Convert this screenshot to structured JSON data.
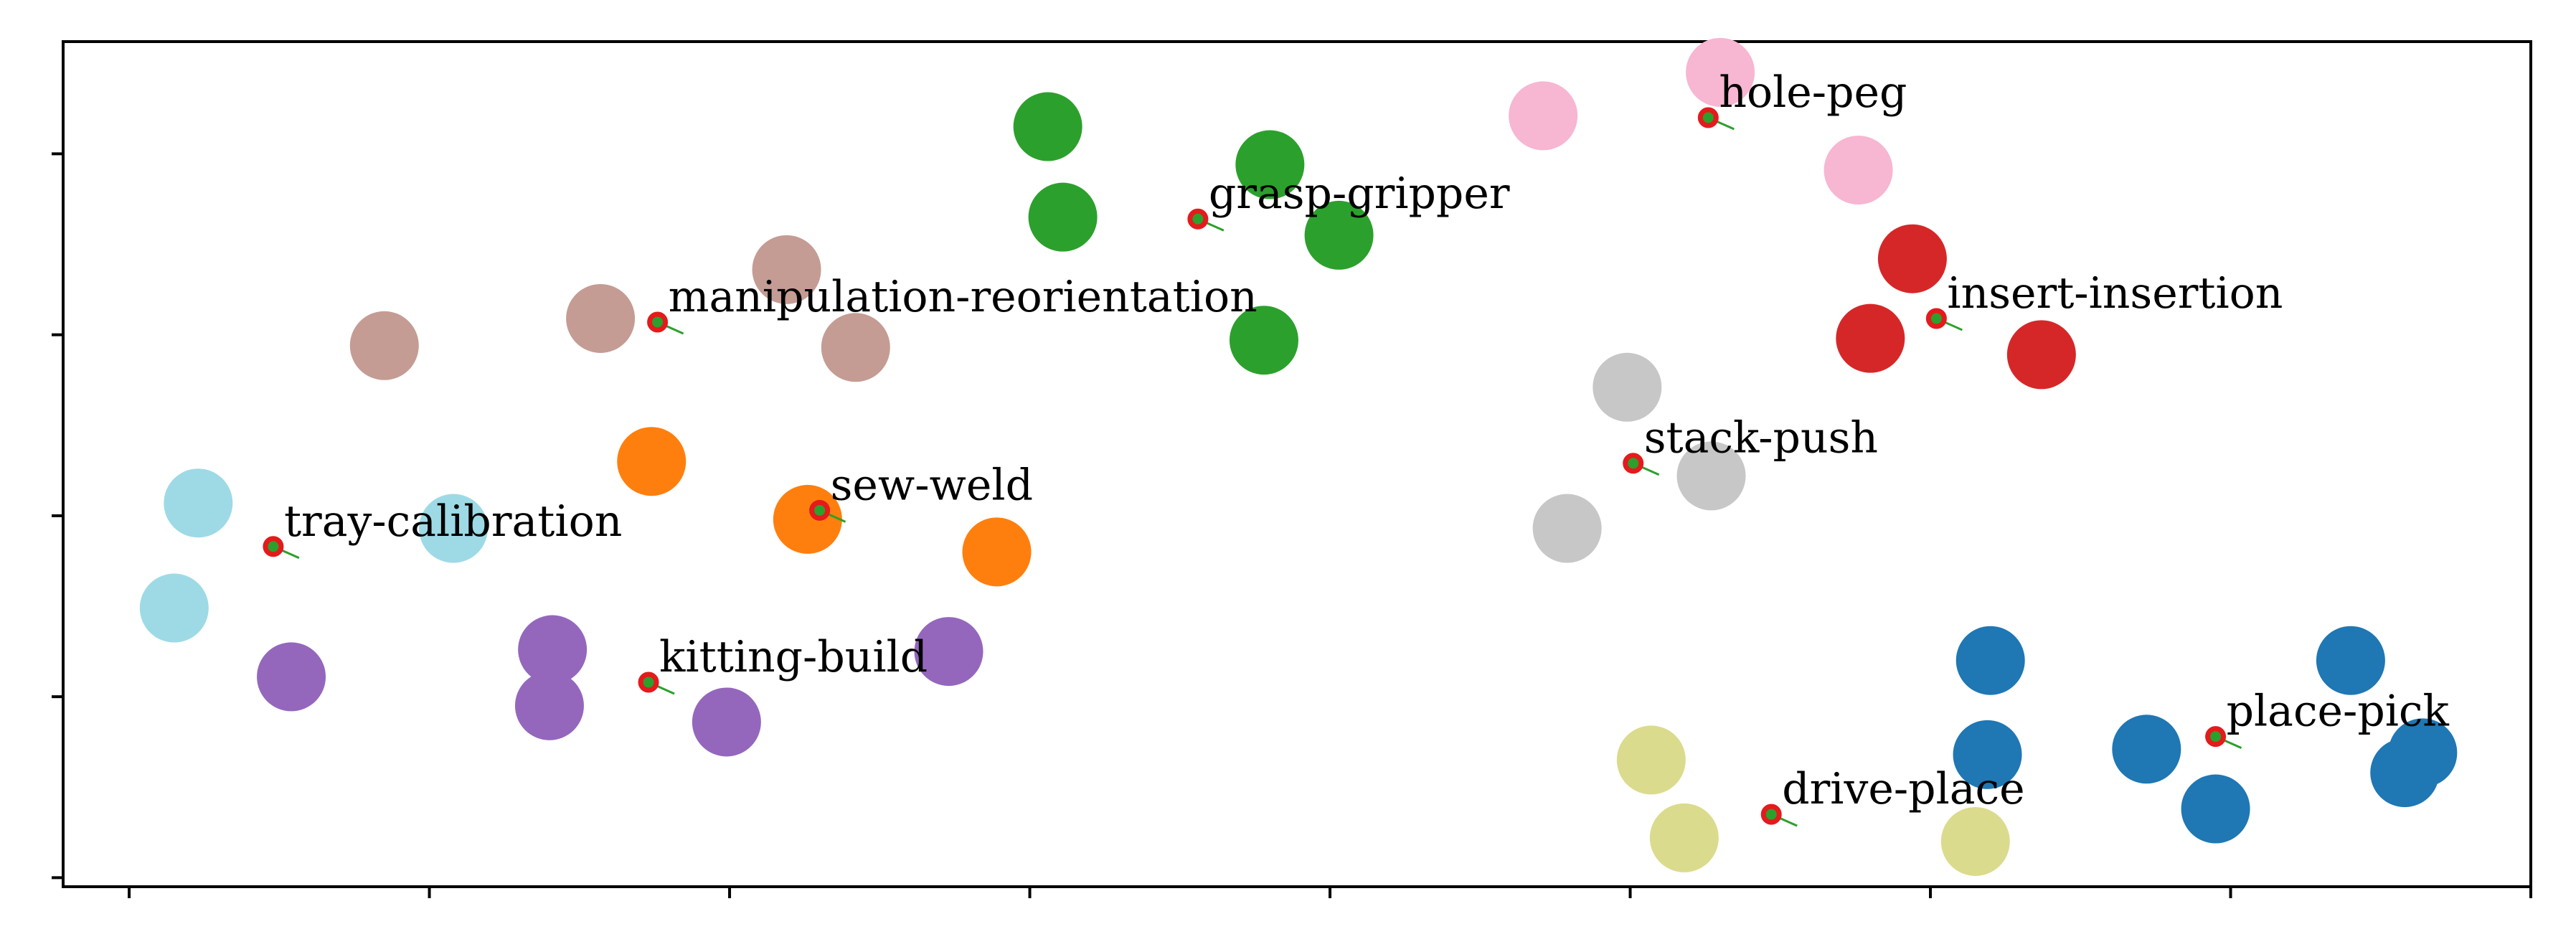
{
  "chart_data": {
    "type": "scatter",
    "title": "",
    "xlabel": "",
    "ylabel": "",
    "xlim": [
      -0.22,
      8.0
    ],
    "ylim": [
      -0.05,
      4.62
    ],
    "xticks": [
      0,
      1,
      2,
      3,
      4,
      5,
      6,
      7,
      8
    ],
    "yticks": [
      0,
      1,
      2,
      3,
      4
    ],
    "show_tick_labels": false,
    "grid": false,
    "legend": "none",
    "clusters": [
      {
        "label": "tray-calibration",
        "color": "#9edae5",
        "centroid": [
          0.48,
          1.83
        ],
        "points": [
          [
            0.23,
            2.07
          ],
          [
            1.08,
            1.93
          ],
          [
            0.15,
            1.49
          ]
        ]
      },
      {
        "label": "manipulation-reorientation",
        "color": "#c49c94",
        "centroid": [
          1.76,
          3.07
        ],
        "points": [
          [
            0.85,
            2.94
          ],
          [
            1.57,
            3.09
          ],
          [
            2.19,
            3.36
          ],
          [
            2.42,
            2.93
          ]
        ]
      },
      {
        "label": "sew-weld",
        "color": "#ff7f0e",
        "centroid": [
          2.3,
          2.03
        ],
        "points": [
          [
            1.74,
            2.3
          ],
          [
            2.26,
            1.98
          ],
          [
            2.89,
            1.8
          ]
        ]
      },
      {
        "label": "kitting-build",
        "color": "#9467bd",
        "centroid": [
          1.73,
          1.08
        ],
        "points": [
          [
            0.54,
            1.11
          ],
          [
            1.41,
            1.26
          ],
          [
            1.4,
            0.95
          ],
          [
            1.99,
            0.86
          ],
          [
            2.73,
            1.25
          ]
        ]
      },
      {
        "label": "grasp-gripper",
        "color": "#2ca02c",
        "centroid": [
          3.56,
          3.64
        ],
        "points": [
          [
            3.06,
            4.15
          ],
          [
            3.11,
            3.65
          ],
          [
            3.8,
            3.94
          ],
          [
            4.03,
            3.55
          ],
          [
            3.78,
            2.97
          ]
        ]
      },
      {
        "label": "hole-peg",
        "color": "#f7b6d2",
        "centroid": [
          5.26,
          4.2
        ],
        "points": [
          [
            4.71,
            4.21
          ],
          [
            5.3,
            4.45
          ],
          [
            5.76,
            3.91
          ]
        ]
      },
      {
        "label": "insert-insertion",
        "color": "#d62728",
        "centroid": [
          6.02,
          3.09
        ],
        "points": [
          [
            5.94,
            3.42
          ],
          [
            5.8,
            2.98
          ],
          [
            6.37,
            2.89
          ]
        ]
      },
      {
        "label": "stack-push",
        "color": "#c7c7c7",
        "centroid": [
          5.01,
          2.29
        ],
        "points": [
          [
            4.99,
            2.71
          ],
          [
            5.27,
            2.22
          ],
          [
            4.79,
            1.93
          ]
        ]
      },
      {
        "label": "drive-place",
        "color": "#dbdb8d",
        "centroid": [
          5.47,
          0.35
        ],
        "points": [
          [
            5.07,
            0.65
          ],
          [
            5.18,
            0.22
          ],
          [
            6.15,
            0.2
          ]
        ]
      },
      {
        "label": "place-pick",
        "color": "#1f77b4",
        "centroid": [
          6.95,
          0.78
        ],
        "points": [
          [
            6.2,
            1.2
          ],
          [
            6.19,
            0.68
          ],
          [
            6.72,
            0.71
          ],
          [
            6.95,
            0.38
          ],
          [
            7.4,
            1.2
          ],
          [
            7.64,
            0.69
          ],
          [
            7.58,
            0.58
          ]
        ]
      }
    ]
  }
}
